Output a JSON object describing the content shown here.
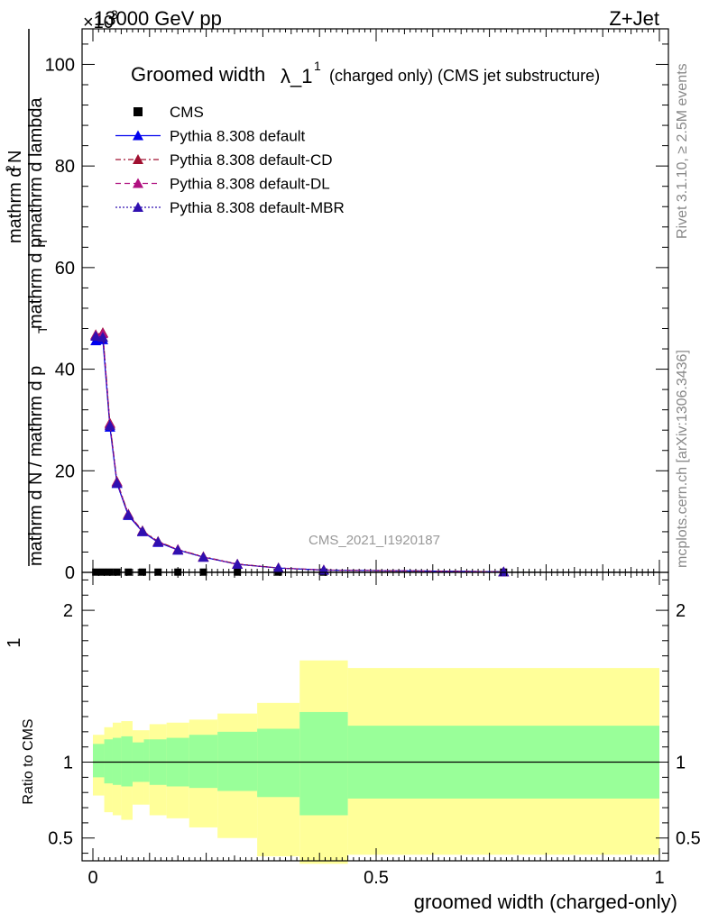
{
  "header": {
    "left": "13000 GeV pp",
    "right": "Z+Jet",
    "exponent": "×10",
    "exponent_power": "3"
  },
  "side_labels": {
    "rivet": "Rivet 3.1.10, ≥ 2.5M events",
    "mcplots": "mcplots.cern.ch [arXiv:1306.3436]"
  },
  "watermark": "CMS_2021_I1920187",
  "chart_data": [
    {
      "type": "line",
      "title": "Groomed width",
      "title_symbol": "λ_1",
      "title_superscript": "1",
      "title_suffix": "(charged only) (CMS jet substructure)",
      "ylabel_numerator": "1",
      "ylabel_line1": "mathrm d N / mathrm d p",
      "ylabel_line1_sub": "T",
      "ylabel_line2": "mathrm d",
      "ylabel_line2_sup": "2",
      "ylabel_line2_rest": "N",
      "ylabel_line3": "mathrm d p",
      "ylabel_line3_sub": "T",
      "ylabel_line3_rest": " mathrm d lambda",
      "xlim": [
        0,
        1
      ],
      "ylim": [
        0,
        107
      ],
      "y_scale_factor": 1000,
      "y_ticks": [
        0,
        20,
        40,
        60,
        80,
        100
      ],
      "legend": [
        {
          "name": "CMS",
          "color": "#000000",
          "marker": "square",
          "style": "none"
        },
        {
          "name": "Pythia 8.308 default",
          "color": "#0000ee",
          "marker": "triangle",
          "style": "solid"
        },
        {
          "name": "Pythia 8.308 default-CD",
          "color": "#a01030",
          "marker": "triangle",
          "style": "dashdot"
        },
        {
          "name": "Pythia 8.308 default-DL",
          "color": "#b01080",
          "marker": "triangle",
          "style": "dashed"
        },
        {
          "name": "Pythia 8.308 default-MBR",
          "color": "#3010b0",
          "marker": "triangle",
          "style": "dotted"
        }
      ],
      "bins": [
        {
          "lo": 0.0,
          "hi": 0.01
        },
        {
          "lo": 0.01,
          "hi": 0.025
        },
        {
          "lo": 0.025,
          "hi": 0.035
        },
        {
          "lo": 0.035,
          "hi": 0.05
        },
        {
          "lo": 0.05,
          "hi": 0.075
        },
        {
          "lo": 0.075,
          "hi": 0.1
        },
        {
          "lo": 0.1,
          "hi": 0.13
        },
        {
          "lo": 0.13,
          "hi": 0.17
        },
        {
          "lo": 0.17,
          "hi": 0.22
        },
        {
          "lo": 0.22,
          "hi": 0.29
        },
        {
          "lo": 0.29,
          "hi": 0.365
        },
        {
          "lo": 0.365,
          "hi": 0.45
        },
        {
          "lo": 0.45,
          "hi": 1.0
        }
      ],
      "series": [
        {
          "name": "CMS",
          "x": [
            0.005,
            0.0175,
            0.03,
            0.0425,
            0.0625,
            0.0875,
            0.115,
            0.15,
            0.195,
            0.255,
            0.3275,
            0.4075,
            0.725
          ],
          "values": [
            0.05,
            0.05,
            0.05,
            0.05,
            0.05,
            0.05,
            0.05,
            0.05,
            0.05,
            0.05,
            0.05,
            0.05,
            0.05
          ]
        },
        {
          "name": "Pythia 8.308 default",
          "x": [
            0.005,
            0.0175,
            0.03,
            0.0425,
            0.0625,
            0.0875,
            0.115,
            0.15,
            0.195,
            0.255,
            0.3275,
            0.4075,
            0.725
          ],
          "values": [
            45.6,
            45.8,
            28.6,
            17.5,
            11.2,
            8.0,
            5.9,
            4.4,
            3.0,
            1.6,
            0.85,
            0.45,
            0.12
          ]
        },
        {
          "name": "Pythia 8.308 default-CD",
          "x": [
            0.005,
            0.0175,
            0.03,
            0.0425,
            0.0625,
            0.0875,
            0.115,
            0.15,
            0.195,
            0.255,
            0.3275,
            0.4075,
            0.725
          ],
          "values": [
            46.8,
            47.2,
            29.4,
            17.9,
            11.5,
            8.2,
            6.1,
            4.5,
            3.1,
            1.65,
            0.88,
            0.46,
            0.12
          ]
        },
        {
          "name": "Pythia 8.308 default-DL",
          "x": [
            0.005,
            0.0175,
            0.03,
            0.0425,
            0.0625,
            0.0875,
            0.115,
            0.15,
            0.195,
            0.255,
            0.3275,
            0.4075,
            0.725
          ],
          "values": [
            46.7,
            47.0,
            29.2,
            17.8,
            11.4,
            8.1,
            6.0,
            4.5,
            3.0,
            1.6,
            0.86,
            0.46,
            0.12
          ]
        },
        {
          "name": "Pythia 8.308 default-MBR",
          "x": [
            0.005,
            0.0175,
            0.03,
            0.0425,
            0.0625,
            0.0875,
            0.115,
            0.15,
            0.195,
            0.255,
            0.3275,
            0.4075,
            0.725
          ],
          "values": [
            46.5,
            46.3,
            28.9,
            17.6,
            11.3,
            8.1,
            6.0,
            4.4,
            3.0,
            1.6,
            0.86,
            0.45,
            0.12
          ]
        }
      ]
    },
    {
      "type": "area",
      "ylabel": "Ratio to CMS",
      "xlabel": "groomed width (charged-only)",
      "xlim": [
        0,
        1
      ],
      "ylim": [
        0.35,
        2.25
      ],
      "x_ticks": [
        0,
        0.5,
        1
      ],
      "x_tick_labels": [
        "0",
        "0.5",
        "1"
      ],
      "y_ticks": [
        0.5,
        1,
        2
      ],
      "y_tick_labels": [
        "0.5",
        "1",
        "2"
      ],
      "band_colors": {
        "stat": "#99ff99",
        "total": "#ffff99"
      },
      "bands": [
        {
          "lo": 0.0,
          "hi": 0.02,
          "stat": [
            0.9,
            1.12
          ],
          "total": [
            0.78,
            1.18
          ]
        },
        {
          "lo": 0.02,
          "hi": 0.035,
          "stat": [
            0.86,
            1.15
          ],
          "total": [
            0.67,
            1.23
          ]
        },
        {
          "lo": 0.035,
          "hi": 0.05,
          "stat": [
            0.85,
            1.16
          ],
          "total": [
            0.65,
            1.26
          ]
        },
        {
          "lo": 0.05,
          "hi": 0.07,
          "stat": [
            0.84,
            1.17
          ],
          "total": [
            0.62,
            1.27
          ]
        },
        {
          "lo": 0.07,
          "hi": 0.09,
          "stat": [
            0.87,
            1.13
          ],
          "total": [
            0.72,
            1.21
          ]
        },
        {
          "lo": 0.09,
          "hi": 0.1,
          "stat": [
            0.87,
            1.15
          ],
          "total": [
            0.72,
            1.21
          ]
        },
        {
          "lo": 0.1,
          "hi": 0.13,
          "stat": [
            0.85,
            1.15
          ],
          "total": [
            0.65,
            1.25
          ]
        },
        {
          "lo": 0.13,
          "hi": 0.17,
          "stat": [
            0.84,
            1.16
          ],
          "total": [
            0.63,
            1.26
          ]
        },
        {
          "lo": 0.17,
          "hi": 0.22,
          "stat": [
            0.83,
            1.18
          ],
          "total": [
            0.57,
            1.28
          ]
        },
        {
          "lo": 0.22,
          "hi": 0.29,
          "stat": [
            0.81,
            1.2
          ],
          "total": [
            0.5,
            1.32
          ]
        },
        {
          "lo": 0.29,
          "hi": 0.365,
          "stat": [
            0.77,
            1.22
          ],
          "total": [
            0.38,
            1.39
          ]
        },
        {
          "lo": 0.365,
          "hi": 0.45,
          "stat": [
            0.65,
            1.33
          ],
          "total": [
            0.33,
            1.67
          ]
        },
        {
          "lo": 0.45,
          "hi": 1.0,
          "stat": [
            0.76,
            1.24
          ],
          "total": [
            0.39,
            1.62
          ]
        }
      ],
      "reference_line": 1
    }
  ]
}
